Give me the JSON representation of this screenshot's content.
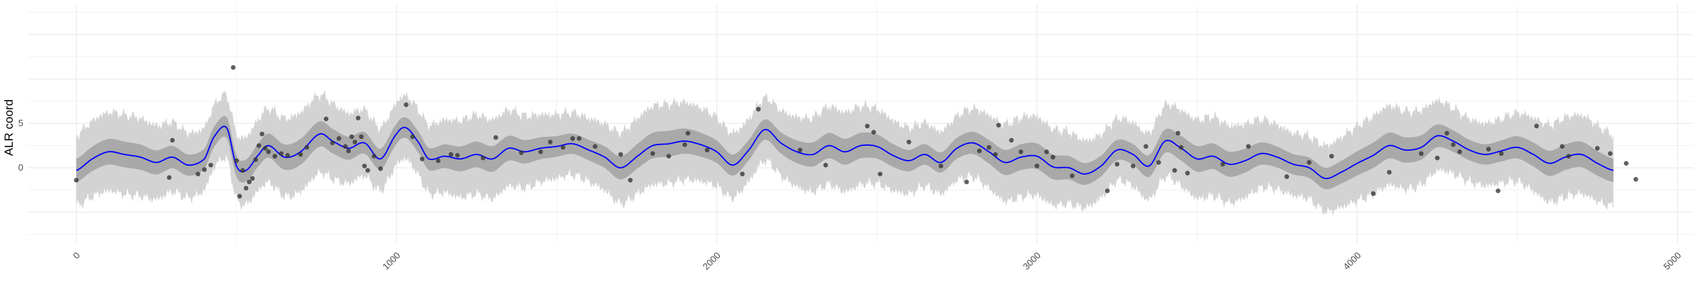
{
  "chart_data": {
    "type": "line",
    "title": "",
    "xlabel": "",
    "ylabel": "ALR coord",
    "xlim": [
      -150,
      5050
    ],
    "ylim": [
      -8.5,
      18.5
    ],
    "x_ticks": [
      0,
      1000,
      2000,
      3000,
      4000,
      5000
    ],
    "x_tick_labels": [
      "0",
      "1000",
      "2000",
      "3000",
      "4000",
      "5000"
    ],
    "y_ticks": [
      0,
      5
    ],
    "y_tick_labels": [
      "0",
      "5"
    ],
    "grid": true,
    "legend": "none",
    "colors": {
      "mean_line": "#0000ff",
      "inner_band": "#a9a9a9",
      "outer_band": "#d3d3d3",
      "points": "#333333",
      "grid": "#ebebeb"
    },
    "series": [
      {
        "kind": "mean",
        "x": [
          0,
          50,
          100,
          150,
          200,
          250,
          300,
          350,
          400,
          430,
          470,
          500,
          530,
          570,
          600,
          650,
          700,
          760,
          800,
          850,
          900,
          950,
          1000,
          1030,
          1070,
          1100,
          1150,
          1200,
          1250,
          1300,
          1350,
          1400,
          1450,
          1500,
          1550,
          1600,
          1650,
          1700,
          1760,
          1800,
          1850,
          1900,
          1950,
          2000,
          2050,
          2100,
          2150,
          2200,
          2250,
          2300,
          2350,
          2400,
          2450,
          2500,
          2550,
          2600,
          2650,
          2700,
          2750,
          2800,
          2850,
          2900,
          2950,
          3000,
          3050,
          3100,
          3150,
          3200,
          3250,
          3300,
          3350,
          3400,
          3450,
          3500,
          3550,
          3600,
          3650,
          3700,
          3750,
          3800,
          3850,
          3900,
          3950,
          4000,
          4050,
          4100,
          4150,
          4200,
          4250,
          4300,
          4350,
          4400,
          4450,
          4500,
          4550,
          4600,
          4650,
          4700,
          4750,
          4800
        ],
        "y": [
          -0.3,
          1.0,
          1.8,
          1.5,
          1.2,
          0.6,
          1.2,
          0.3,
          1.0,
          3.5,
          4.5,
          0.2,
          -0.3,
          1.5,
          2.5,
          1.2,
          1.8,
          3.8,
          3.0,
          2.2,
          2.8,
          1.0,
          3.8,
          4.5,
          2.8,
          1.0,
          1.3,
          1.0,
          1.5,
          1.0,
          2.2,
          1.8,
          2.2,
          2.4,
          2.7,
          2.0,
          1.2,
          0.0,
          1.5,
          2.5,
          2.7,
          3.0,
          2.6,
          1.8,
          0.3,
          2.0,
          4.3,
          2.8,
          1.8,
          1.5,
          2.5,
          1.8,
          2.5,
          2.4,
          1.4,
          0.8,
          1.5,
          0.6,
          2.2,
          2.8,
          1.8,
          0.6,
          1.2,
          1.3,
          0.1,
          0.0,
          -0.7,
          0.2,
          2.0,
          1.5,
          0.2,
          3.0,
          2.2,
          1.0,
          1.3,
          0.4,
          0.8,
          1.6,
          1.2,
          0.4,
          0.0,
          -1.2,
          -0.5,
          0.5,
          1.4,
          2.5,
          2.0,
          2.3,
          3.6,
          3.0,
          2.0,
          1.5,
          1.9,
          2.3,
          1.5,
          0.5,
          1.2,
          1.5,
          0.5,
          -0.3
        ]
      }
    ],
    "bands": {
      "inner_half_width": 1.3,
      "outer_half_width": 4.0
    },
    "points": [
      {
        "x": 0,
        "y": -1.4
      },
      {
        "x": 290,
        "y": -1.1
      },
      {
        "x": 300,
        "y": 3.1
      },
      {
        "x": 380,
        "y": -0.7
      },
      {
        "x": 400,
        "y": -0.2
      },
      {
        "x": 420,
        "y": 0.3
      },
      {
        "x": 490,
        "y": 11.3
      },
      {
        "x": 500,
        "y": 0.8
      },
      {
        "x": 510,
        "y": -3.2
      },
      {
        "x": 520,
        "y": -0.3
      },
      {
        "x": 530,
        "y": -2.3
      },
      {
        "x": 540,
        "y": -1.6
      },
      {
        "x": 550,
        "y": -1.2
      },
      {
        "x": 560,
        "y": 0.9
      },
      {
        "x": 570,
        "y": 2.5
      },
      {
        "x": 580,
        "y": 3.8
      },
      {
        "x": 590,
        "y": 2.2
      },
      {
        "x": 600,
        "y": 1.8
      },
      {
        "x": 620,
        "y": 1.3
      },
      {
        "x": 640,
        "y": 1.6
      },
      {
        "x": 660,
        "y": 1.4
      },
      {
        "x": 700,
        "y": 1.5
      },
      {
        "x": 720,
        "y": 2.3
      },
      {
        "x": 780,
        "y": 5.5
      },
      {
        "x": 800,
        "y": 2.8
      },
      {
        "x": 820,
        "y": 3.3
      },
      {
        "x": 840,
        "y": 2.4
      },
      {
        "x": 850,
        "y": 1.9
      },
      {
        "x": 860,
        "y": 3.5
      },
      {
        "x": 870,
        "y": 2.9
      },
      {
        "x": 880,
        "y": 5.6
      },
      {
        "x": 890,
        "y": 3.5
      },
      {
        "x": 900,
        "y": 0.2
      },
      {
        "x": 910,
        "y": -0.3
      },
      {
        "x": 930,
        "y": 1.3
      },
      {
        "x": 950,
        "y": -0.1
      },
      {
        "x": 1030,
        "y": 7.1
      },
      {
        "x": 1050,
        "y": 3.5
      },
      {
        "x": 1080,
        "y": 1.0
      },
      {
        "x": 1130,
        "y": 0.8
      },
      {
        "x": 1170,
        "y": 1.5
      },
      {
        "x": 1190,
        "y": 1.4
      },
      {
        "x": 1270,
        "y": 1.1
      },
      {
        "x": 1310,
        "y": 3.4
      },
      {
        "x": 1390,
        "y": 1.7
      },
      {
        "x": 1450,
        "y": 1.8
      },
      {
        "x": 1480,
        "y": 2.9
      },
      {
        "x": 1520,
        "y": 2.3
      },
      {
        "x": 1550,
        "y": 3.3
      },
      {
        "x": 1570,
        "y": 3.3
      },
      {
        "x": 1620,
        "y": 2.4
      },
      {
        "x": 1700,
        "y": 1.5
      },
      {
        "x": 1730,
        "y": -1.4
      },
      {
        "x": 1800,
        "y": 1.6
      },
      {
        "x": 1850,
        "y": 1.3
      },
      {
        "x": 1900,
        "y": 2.6
      },
      {
        "x": 1910,
        "y": 3.9
      },
      {
        "x": 1970,
        "y": 2.0
      },
      {
        "x": 2080,
        "y": -0.7
      },
      {
        "x": 2130,
        "y": 6.6
      },
      {
        "x": 2260,
        "y": 2.0
      },
      {
        "x": 2340,
        "y": 0.3
      },
      {
        "x": 2470,
        "y": 4.7
      },
      {
        "x": 2490,
        "y": 4.0
      },
      {
        "x": 2510,
        "y": -0.7
      },
      {
        "x": 2600,
        "y": 2.9
      },
      {
        "x": 2700,
        "y": 0.2
      },
      {
        "x": 2780,
        "y": -1.6
      },
      {
        "x": 2820,
        "y": 1.9
      },
      {
        "x": 2850,
        "y": 2.3
      },
      {
        "x": 2870,
        "y": 1.5
      },
      {
        "x": 2880,
        "y": 4.8
      },
      {
        "x": 2920,
        "y": 3.1
      },
      {
        "x": 2950,
        "y": 1.8
      },
      {
        "x": 3000,
        "y": 0.2
      },
      {
        "x": 3030,
        "y": 1.8
      },
      {
        "x": 3050,
        "y": 1.2
      },
      {
        "x": 3110,
        "y": -0.9
      },
      {
        "x": 3220,
        "y": -2.6
      },
      {
        "x": 3250,
        "y": 0.4
      },
      {
        "x": 3300,
        "y": 0.2
      },
      {
        "x": 3340,
        "y": 2.4
      },
      {
        "x": 3380,
        "y": 0.6
      },
      {
        "x": 3430,
        "y": -0.3
      },
      {
        "x": 3440,
        "y": 3.9
      },
      {
        "x": 3450,
        "y": 2.3
      },
      {
        "x": 3470,
        "y": -0.6
      },
      {
        "x": 3580,
        "y": 0.4
      },
      {
        "x": 3660,
        "y": 2.4
      },
      {
        "x": 3780,
        "y": -1.0
      },
      {
        "x": 3850,
        "y": 0.6
      },
      {
        "x": 3920,
        "y": 1.3
      },
      {
        "x": 4050,
        "y": -2.9
      },
      {
        "x": 4100,
        "y": -0.5
      },
      {
        "x": 4200,
        "y": 1.6
      },
      {
        "x": 4250,
        "y": 1.1
      },
      {
        "x": 4280,
        "y": 3.9
      },
      {
        "x": 4300,
        "y": 2.6
      },
      {
        "x": 4320,
        "y": 1.8
      },
      {
        "x": 4410,
        "y": 2.1
      },
      {
        "x": 4440,
        "y": -2.6
      },
      {
        "x": 4450,
        "y": 1.6
      },
      {
        "x": 4560,
        "y": 4.7
      },
      {
        "x": 4640,
        "y": 2.4
      },
      {
        "x": 4660,
        "y": 1.3
      },
      {
        "x": 4750,
        "y": 2.2
      },
      {
        "x": 4790,
        "y": 1.6
      },
      {
        "x": 4840,
        "y": 0.5
      },
      {
        "x": 4870,
        "y": -1.3
      }
    ]
  }
}
